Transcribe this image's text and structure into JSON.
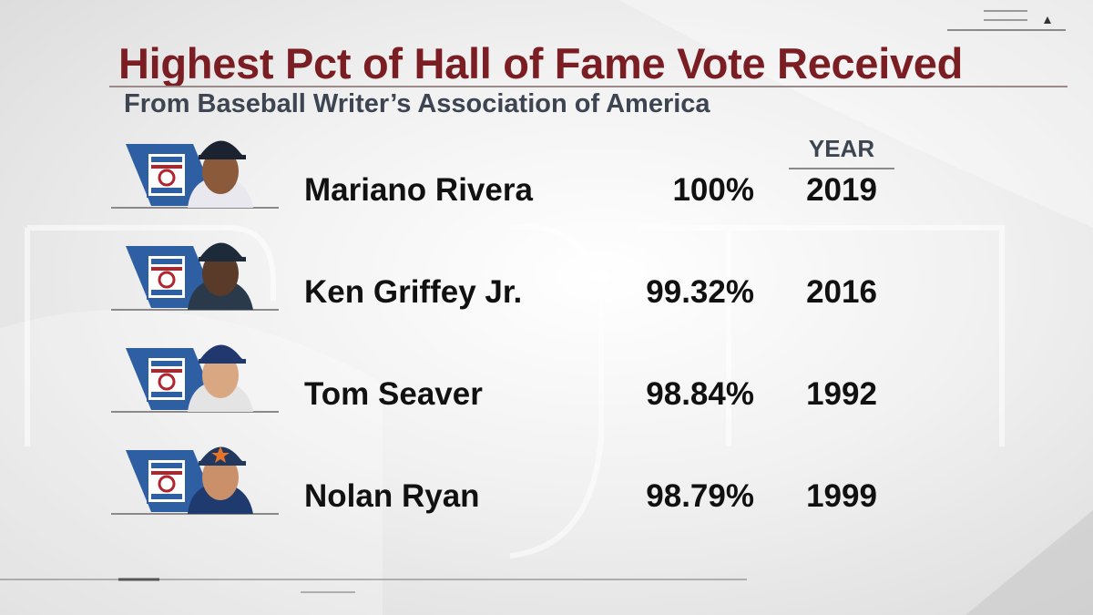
{
  "title": "Highest Pct of Hall of Fame Vote Received",
  "subtitle": "From Baseball Writer’s Association of America",
  "year_header": "YEAR",
  "rows": [
    {
      "name": "Mariano Rivera",
      "pct": "100%",
      "year": "2019",
      "cap_color": "#1b2230",
      "jersey_color": "#e8e8ee"
    },
    {
      "name": "Ken Griffey Jr.",
      "pct": "99.32%",
      "year": "2016",
      "cap_color": "#1c2a3a",
      "jersey_color": "#2b3a4a"
    },
    {
      "name": "Tom Seaver",
      "pct": "98.84%",
      "year": "1992",
      "cap_color": "#20386e",
      "jersey_color": "#e4e4e4"
    },
    {
      "name": "Nolan Ryan",
      "pct": "98.79%",
      "year": "1999",
      "cap_color": "#22385f",
      "jersey_color": "#1e3a6e"
    }
  ],
  "colors": {
    "title": "#7a1e24",
    "subtitle": "#3d4552",
    "emblem_blue": "#2f5fa3",
    "emblem_red": "#b0242d"
  },
  "icons": [
    "hall-of-fame-emblem-icon",
    "player-headshot-icon"
  ]
}
